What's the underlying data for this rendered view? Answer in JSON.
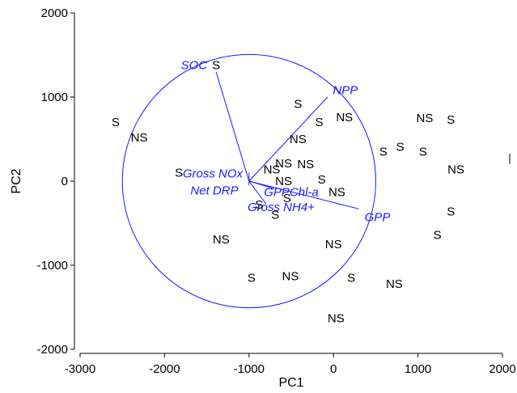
{
  "chart_data": {
    "type": "scatter",
    "title": "",
    "xlabel": "PC1",
    "ylabel": "PC2",
    "xlim": [
      -3000,
      2000
    ],
    "ylim": [
      -2000,
      2000
    ],
    "x_ticks": [
      -3000,
      -2000,
      -1000,
      0,
      1000,
      2000
    ],
    "y_ticks": [
      -2000,
      -1000,
      0,
      1000,
      2000
    ],
    "x_tick_labels": [
      "-3000",
      "-2000",
      "-1000",
      "0",
      "1000",
      "2000"
    ],
    "y_tick_labels": [
      "-2000",
      "-1000",
      "0",
      "1000",
      "2000"
    ],
    "grid": false,
    "colors": {
      "points": "#000000",
      "vectors": "#1a1aff"
    },
    "circle": {
      "center": [
        -1000,
        0
      ],
      "radius": 1500
    },
    "points": [
      {
        "label": "S",
        "x": -2580,
        "y": 700
      },
      {
        "label": "NS",
        "x": -2300,
        "y": 520
      },
      {
        "label": "S",
        "x": -1830,
        "y": 100
      },
      {
        "label": "NS",
        "x": -1330,
        "y": -690
      },
      {
        "label": "S",
        "x": -1390,
        "y": 1380
      },
      {
        "label": "S",
        "x": -420,
        "y": 920
      },
      {
        "label": "S",
        "x": -170,
        "y": 700
      },
      {
        "label": "NS",
        "x": 130,
        "y": 760
      },
      {
        "label": "NS",
        "x": -420,
        "y": 500
      },
      {
        "label": "NS",
        "x": -590,
        "y": 210
      },
      {
        "label": "NS",
        "x": -330,
        "y": 200
      },
      {
        "label": "NS",
        "x": -730,
        "y": 140
      },
      {
        "label": "NS",
        "x": -590,
        "y": 0
      },
      {
        "label": "S",
        "x": -140,
        "y": 20
      },
      {
        "label": "NS",
        "x": 40,
        "y": -130
      },
      {
        "label": "S",
        "x": -550,
        "y": -200
      },
      {
        "label": "S",
        "x": -880,
        "y": -280
      },
      {
        "label": "S",
        "x": -690,
        "y": -400
      },
      {
        "label": "NS",
        "x": 0,
        "y": -750
      },
      {
        "label": "S",
        "x": -970,
        "y": -1150
      },
      {
        "label": "NS",
        "x": -510,
        "y": -1130
      },
      {
        "label": "S",
        "x": 210,
        "y": -1150
      },
      {
        "label": "NS",
        "x": 720,
        "y": -1220
      },
      {
        "label": "NS",
        "x": 30,
        "y": -1630
      },
      {
        "label": "S",
        "x": 590,
        "y": 350
      },
      {
        "label": "S",
        "x": 790,
        "y": 410
      },
      {
        "label": "S",
        "x": 1060,
        "y": 350
      },
      {
        "label": "NS",
        "x": 1080,
        "y": 750
      },
      {
        "label": "S",
        "x": 1390,
        "y": 730
      },
      {
        "label": "NS",
        "x": 1450,
        "y": 140
      },
      {
        "label": "S",
        "x": 1390,
        "y": -360
      },
      {
        "label": "S",
        "x": 1230,
        "y": -640
      }
    ],
    "vectors": [
      {
        "label": "SOC",
        "x": -1390,
        "y": 1300,
        "label_x": -1650,
        "label_y": 1380
      },
      {
        "label": "NPP",
        "x": -70,
        "y": 1000,
        "label_x": 140,
        "label_y": 1080
      },
      {
        "label": "GPP",
        "x": 300,
        "y": -330,
        "label_x": 520,
        "label_y": -430
      },
      {
        "label": "Gross NOx",
        "x": -1000,
        "y": 100,
        "label_x": -1430,
        "label_y": 90
      },
      {
        "label": "Net DRP",
        "x": -1000,
        "y": -50,
        "label_x": -1410,
        "label_y": -110
      },
      {
        "label": "GPPChl-a",
        "x": -700,
        "y": -90,
        "label_x": -500,
        "label_y": -130
      },
      {
        "label": "Gross NH4+",
        "x": -800,
        "y": -270,
        "label_x": -620,
        "label_y": -310
      }
    ]
  }
}
